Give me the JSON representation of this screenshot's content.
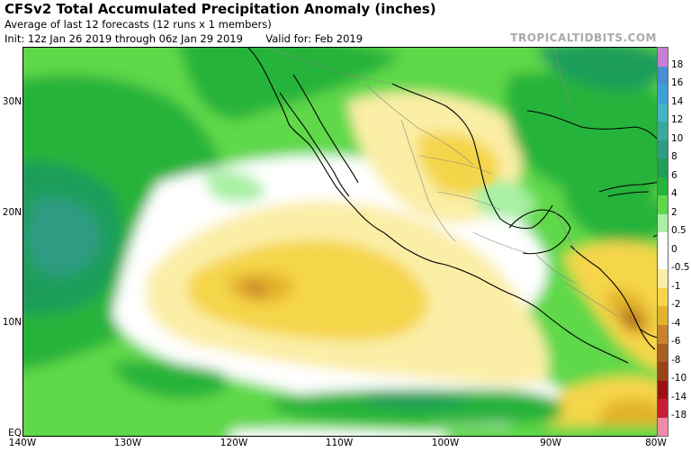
{
  "header": {
    "title": "CFSv2 Total Accumulated Precipitation Anomaly (inches)",
    "subtitle": "Average of last 12 forecasts (12 runs x 1 members)",
    "init": "Init: 12z Jan 26 2019 through 06z Jan 29 2019",
    "valid": "Valid for: Feb 2019",
    "brand": "TROPICALTIDBITS.COM"
  },
  "map": {
    "region": "Eastern Pacific / Mexico / Central America",
    "lat_labels": [
      "30N",
      "20N",
      "10N",
      "EQ"
    ],
    "lon_labels": [
      "140W",
      "130W",
      "120W",
      "110W",
      "100W",
      "90W",
      "80W"
    ]
  },
  "colorbar": {
    "labels": [
      "18",
      "16",
      "14",
      "12",
      "10",
      "8",
      "6",
      "4",
      "2",
      "0.5",
      "0",
      "-0.5",
      "-1",
      "-2",
      "-4",
      "-6",
      "-8",
      "-10",
      "-14",
      "-18"
    ],
    "colors": [
      "#c77fd4",
      "#4a8ecf",
      "#3fa0d6",
      "#44b3c5",
      "#3aa99b",
      "#2f9c82",
      "#1f9e5a",
      "#26b33a",
      "#5ed84a",
      "#a9f0a4",
      "#ffffff",
      "#ffffff",
      "#fbeea6",
      "#f5d548",
      "#e2b32b",
      "#c9822d",
      "#a75f26",
      "#9c4219",
      "#9b1313",
      "#c91d3a",
      "#f18aa7"
    ]
  }
}
